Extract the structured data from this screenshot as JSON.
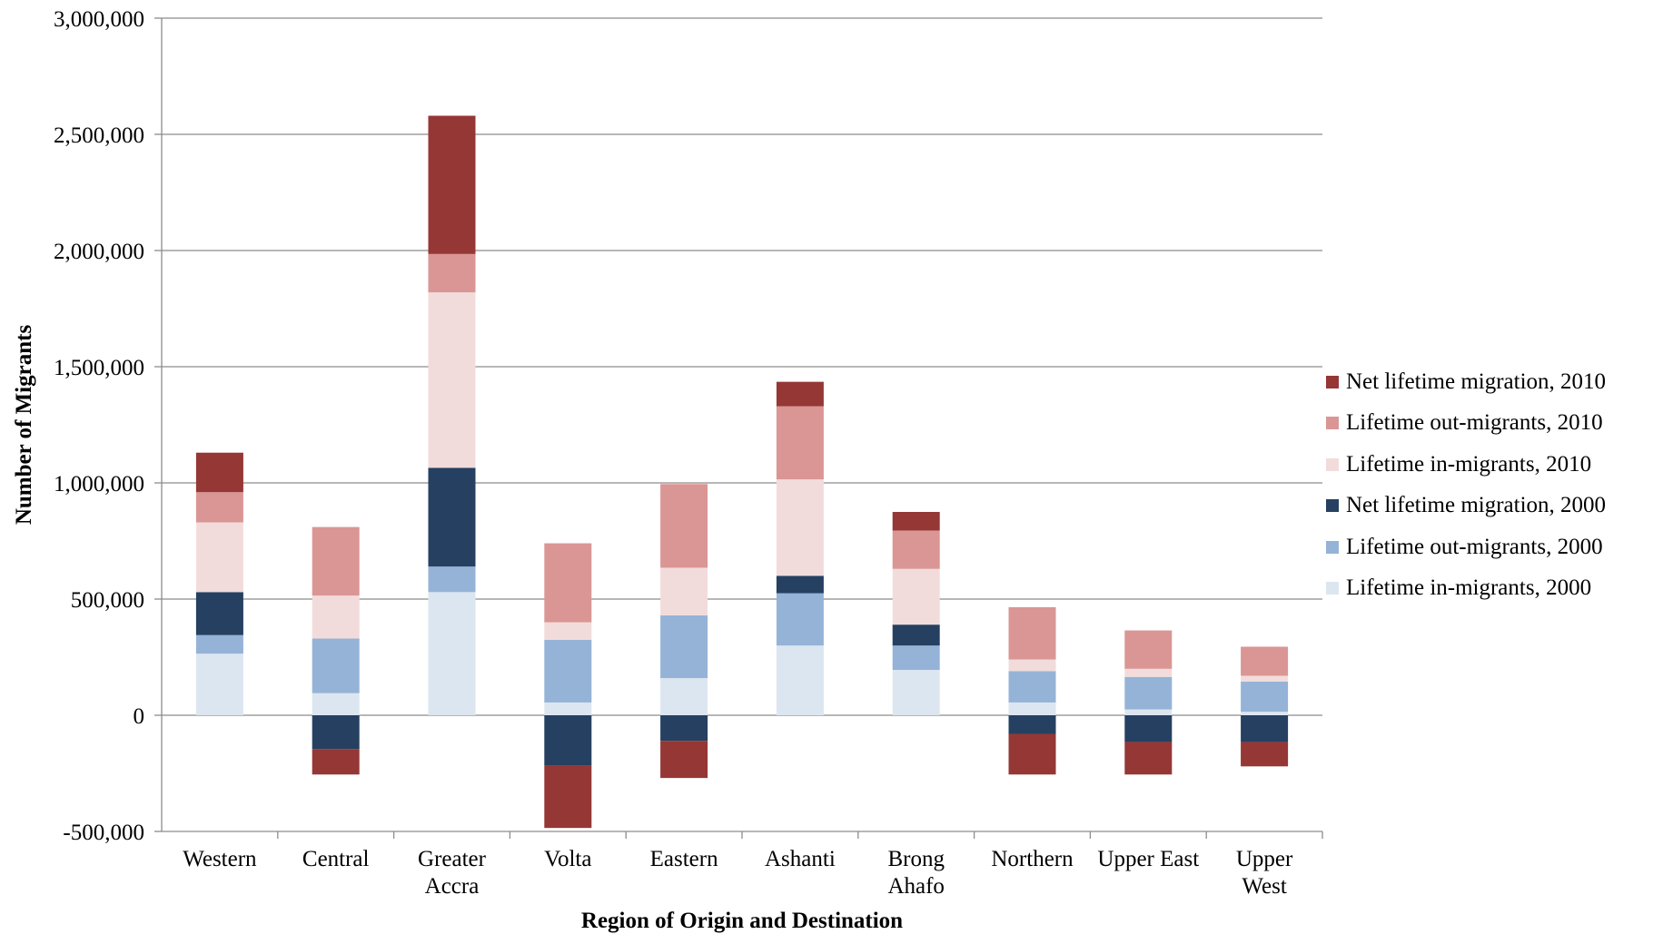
{
  "chart_data": {
    "type": "bar",
    "stacked": true,
    "xlabel": "Region of Origin and Destination",
    "ylabel": "Number of Migrants",
    "ylim": [
      -500000,
      3000000
    ],
    "yticks": [
      "3,000,000",
      "2,500,000",
      "2,000,000",
      "1,500,000",
      "1,000,000",
      "500,000",
      "0",
      "-500,000"
    ],
    "ytick_values": [
      3000000,
      2500000,
      2000000,
      1500000,
      1000000,
      500000,
      0,
      -500000
    ],
    "grid": true,
    "legend_position": "right",
    "categories": [
      [
        "Western"
      ],
      [
        "Central"
      ],
      [
        "Greater",
        "Accra"
      ],
      [
        "Volta"
      ],
      [
        "Eastern"
      ],
      [
        "Ashanti"
      ],
      [
        "Brong",
        "Ahafo"
      ],
      [
        "Northern"
      ],
      [
        "Upper East"
      ],
      [
        "Upper",
        "West"
      ]
    ],
    "series": [
      {
        "name": "Lifetime in-migrants, 2000",
        "color": "#dce6f1",
        "values": [
          265000,
          95000,
          530000,
          55000,
          160000,
          300000,
          195000,
          55000,
          25000,
          15000
        ]
      },
      {
        "name": "Lifetime out-migrants, 2000",
        "color": "#95b3d7",
        "values": [
          80000,
          235000,
          110000,
          270000,
          270000,
          225000,
          105000,
          135000,
          140000,
          130000
        ]
      },
      {
        "name": "Net lifetime migration, 2000",
        "color": "#254061",
        "values": [
          185000,
          -145000,
          425000,
          -215000,
          -110000,
          75000,
          90000,
          -80000,
          -115000,
          -115000
        ]
      },
      {
        "name": "Lifetime in-migrants, 2010",
        "color": "#f2dcdb",
        "values": [
          300000,
          185000,
          755000,
          75000,
          205000,
          415000,
          240000,
          50000,
          35000,
          25000
        ]
      },
      {
        "name": "Lifetime out-migrants, 2010",
        "color": "#da9694",
        "values": [
          130000,
          295000,
          165000,
          340000,
          360000,
          315000,
          165000,
          225000,
          165000,
          125000
        ]
      },
      {
        "name": "Net lifetime migration, 2010",
        "color": "#953735",
        "values": [
          170000,
          -110000,
          595000,
          -270000,
          -160000,
          105000,
          80000,
          -175000,
          -140000,
          -105000
        ]
      }
    ]
  },
  "legend_order": [
    5,
    4,
    3,
    2,
    1,
    0
  ]
}
